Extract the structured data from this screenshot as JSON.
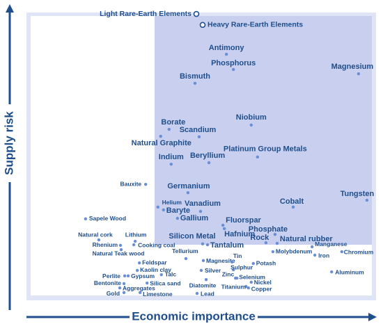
{
  "chart_data": {
    "type": "scatter",
    "x_label": "Economic importance",
    "y_label": "Supply risk",
    "xlim": [
      0,
      100
    ],
    "ylim": [
      0,
      100
    ],
    "color": "#6a8fd6",
    "highlights": {
      "labels": [
        "Light Rare-Earth Elements",
        "Heavy Rare-Earth Elements"
      ],
      "x": [
        48.6,
        50.4
      ],
      "y": [
        99.5,
        95.7
      ]
    },
    "points": {
      "labels": [
        "Antimony",
        "Phosphorus",
        "Magnesium",
        "Bismuth",
        "Niobium",
        "Borate",
        "Scandium",
        "Natural Graphite",
        "Platinum Group Metals",
        "Indium",
        "Beryllium",
        "Bauxite",
        "Germanium",
        "Tungsten",
        "Cobalt",
        "Helium",
        "Baryte",
        "Vanadium",
        "Sapele Wood",
        "Gallium",
        "Fluorspar",
        "Hafnium",
        "Phosphate",
        "Rock",
        "Natural rubber",
        "Silicon Metal",
        "Tantalum",
        "Natural cork",
        "Lithium",
        "Rhenium",
        "Cooking coal",
        "Manganese",
        "Natural Teak wood",
        "Chromium",
        "Molybdenum",
        "Iron",
        "Tellurium",
        "Magnesite",
        "Tin",
        "Feldspar",
        "Potash",
        "Sulphur",
        "Silver",
        "Aluminum",
        "Kaolin clay",
        "Perlite",
        "Gypsum",
        "Talc",
        "Zinc",
        "Selenium",
        "Diatomite",
        "Bentonite",
        "Silica sand",
        "Nickel",
        "Titanium",
        "Copper",
        "Aggregates",
        "Gold",
        "Limestone",
        "Lead"
      ],
      "x": [
        57.2,
        59.2,
        95.0,
        48.2,
        64.3,
        40.8,
        49.4,
        38.4,
        66.1,
        41.4,
        52.2,
        34.1,
        46.2,
        97.4,
        76.3,
        37.6,
        39.2,
        49.8,
        16.9,
        43.2,
        56.2,
        56.6,
        71.1,
        68.5,
        71.7,
        50.4,
        51.8,
        20.7,
        31.1,
        26.9,
        30.7,
        81.7,
        27.1,
        90.2,
        70.5,
        82.5,
        45.6,
        50.6,
        58.8,
        32.3,
        64.9,
        59.2,
        50.0,
        87.3,
        31.7,
        28.1,
        29.1,
        38.6,
        59.8,
        60.2,
        51.4,
        27.9,
        34.5,
        64.3,
        62.8,
        63.5,
        26.7,
        27.9,
        32.5,
        48.8
      ],
      "y": [
        85.5,
        80.2,
        78.7,
        75.4,
        60.9,
        59.4,
        56.8,
        57.0,
        49.8,
        47.3,
        47.8,
        40.3,
        37.4,
        34.8,
        32.4,
        32.4,
        31.4,
        30.9,
        28.3,
        28.5,
        26.1,
        24.9,
        22.9,
        20.0,
        19.8,
        19.6,
        19.3,
        21.0,
        20.5,
        19.1,
        19.3,
        18.6,
        17.6,
        16.9,
        16.9,
        15.7,
        14.5,
        13.8,
        13.3,
        13.0,
        12.8,
        10.6,
        10.4,
        9.9,
        10.4,
        8.5,
        8.5,
        8.9,
        7.7,
        7.7,
        7.2,
        5.8,
        6.0,
        6.3,
        4.8,
        4.3,
        4.3,
        2.7,
        2.7,
        2.4
      ]
    }
  }
}
